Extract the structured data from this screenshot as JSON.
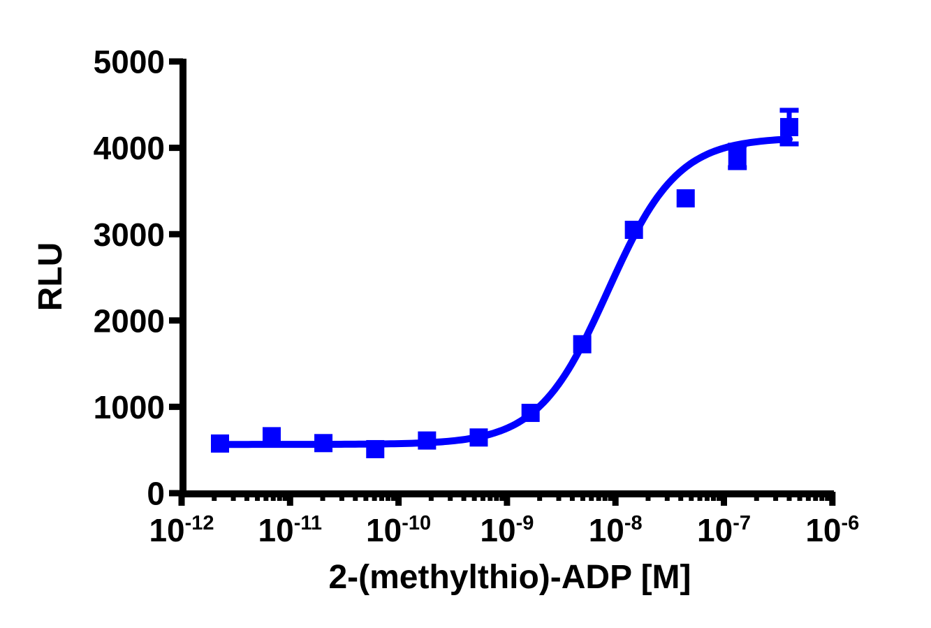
{
  "figure": {
    "background_color": "#FFFFFF",
    "axis_color": "#000000",
    "text_color": "#000000"
  },
  "chart_data": {
    "type": "scatter",
    "title": "",
    "xlabel": "2-(methylthio)-ADP [M]",
    "ylabel": "RLU",
    "x_scale": "log10",
    "xlim": [
      1e-12,
      1e-06
    ],
    "ylim": [
      0,
      5000
    ],
    "grid": false,
    "legend": "none",
    "y_ticks": [
      0,
      1000,
      2000,
      3000,
      4000,
      5000
    ],
    "x_ticks": [
      {
        "base": "10",
        "exponent": "-12"
      },
      {
        "base": "10",
        "exponent": "-11"
      },
      {
        "base": "10",
        "exponent": "-10"
      },
      {
        "base": "10",
        "exponent": "-9"
      },
      {
        "base": "10",
        "exponent": "-8"
      },
      {
        "base": "10",
        "exponent": "-7"
      },
      {
        "base": "10",
        "exponent": "-6"
      }
    ],
    "x_minor_ticks": "log subdivisions 2-9 per decade",
    "series": [
      {
        "name": "2-(methylthio)-ADP",
        "marker": "filled-square",
        "color": "#0000FF",
        "points": [
          {
            "conc_M": 2.26e-12,
            "rlu": 575,
            "sem": null
          },
          {
            "conc_M": 6.77e-12,
            "rlu": 660,
            "sem": null
          },
          {
            "conc_M": 2.03e-11,
            "rlu": 580,
            "sem": null
          },
          {
            "conc_M": 6.1e-11,
            "rlu": 510,
            "sem": null
          },
          {
            "conc_M": 1.83e-10,
            "rlu": 610,
            "sem": null
          },
          {
            "conc_M": 5.49e-10,
            "rlu": 645,
            "sem": null
          },
          {
            "conc_M": 1.65e-09,
            "rlu": 930,
            "sem": null
          },
          {
            "conc_M": 4.94e-09,
            "rlu": 1725,
            "sem": null
          },
          {
            "conc_M": 1.48e-08,
            "rlu": 3050,
            "sem": null
          },
          {
            "conc_M": 4.44e-08,
            "rlu": 3415,
            "sem": null
          },
          {
            "conc_M": 1.33e-07,
            "rlu": 3900,
            "sem": 130
          },
          {
            "conc_M": 4e-07,
            "rlu": 4240,
            "sem": 195
          }
        ]
      }
    ],
    "fit_curve": {
      "model": "four-parameter logistic (sigmoidal dose-response)",
      "color": "#0000FF",
      "bottom_rlu": 565,
      "top_rlu": 4120,
      "log10_ec50": -8.07,
      "ec50_M": 8.5e-09,
      "hill_slope": 1.35
    }
  }
}
